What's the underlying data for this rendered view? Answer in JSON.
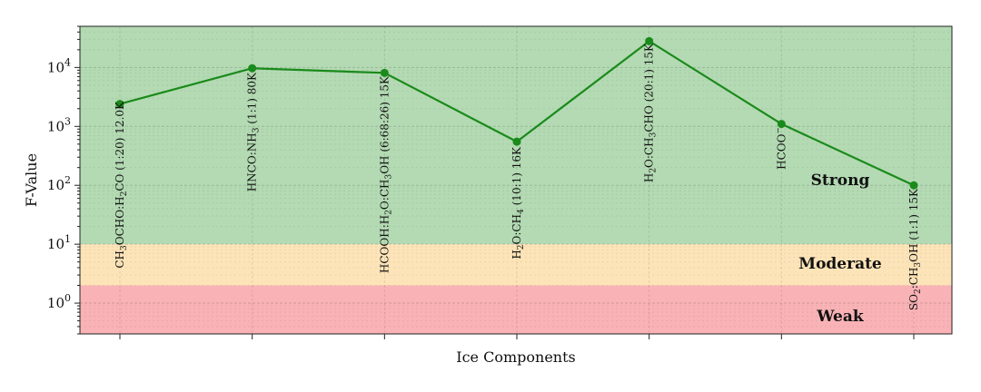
{
  "chart_data": {
    "type": "line",
    "title": "",
    "xlabel": "Ice Components",
    "ylabel": "F-Value",
    "yscale": "log",
    "ylim": [
      0.3,
      50000
    ],
    "grid": true,
    "categories": [
      "CH3OCHO:H2CO (1:20) 12.0K",
      "HNCO:NH3 (1:1) 80K",
      "HCOOH:H2O:CH3OH (6:68:26) 15K",
      "H2O:CH4 (10:1) 16K",
      "H2O:CH3CHO (20:1) 15K",
      "HCOO−",
      "SO2:CH3OH (1:1) 15K"
    ],
    "category_labels_rich": [
      [
        {
          "t": "CH"
        },
        {
          "t": "3",
          "s": "sub"
        },
        {
          "t": "OCHO:H"
        },
        {
          "t": "2",
          "s": "sub"
        },
        {
          "t": "CO (1:20) 12.0K"
        }
      ],
      [
        {
          "t": "HNCO:NH"
        },
        {
          "t": "3",
          "s": "sub"
        },
        {
          "t": " (1:1) 80K"
        }
      ],
      [
        {
          "t": "HCOOH:H"
        },
        {
          "t": "2",
          "s": "sub"
        },
        {
          "t": "O:CH"
        },
        {
          "t": "3",
          "s": "sub"
        },
        {
          "t": "OH (6:68:26) 15K"
        }
      ],
      [
        {
          "t": "H"
        },
        {
          "t": "2",
          "s": "sub"
        },
        {
          "t": "O:CH"
        },
        {
          "t": "4",
          "s": "sub"
        },
        {
          "t": " (10:1) 16K"
        }
      ],
      [
        {
          "t": "H"
        },
        {
          "t": "2",
          "s": "sub"
        },
        {
          "t": "O:CH"
        },
        {
          "t": "3",
          "s": "sub"
        },
        {
          "t": "CHO (20:1) 15K"
        }
      ],
      [
        {
          "t": "HCOO"
        },
        {
          "t": "−",
          "s": "sup"
        }
      ],
      [
        {
          "t": "SO"
        },
        {
          "t": "2",
          "s": "sub"
        },
        {
          "t": ":CH"
        },
        {
          "t": "3",
          "s": "sub"
        },
        {
          "t": "OH (1:1) 15K"
        }
      ]
    ],
    "series": [
      {
        "values": [
          2400,
          9700,
          8100,
          550,
          28000,
          1100,
          100
        ],
        "color": "#1a8a1a"
      }
    ],
    "y_ticks": [
      {
        "base": "10",
        "exp": "0",
        "value": 1
      },
      {
        "base": "10",
        "exp": "1",
        "value": 10
      },
      {
        "base": "10",
        "exp": "2",
        "value": 100
      },
      {
        "base": "10",
        "exp": "3",
        "value": 1000
      },
      {
        "base": "10",
        "exp": "4",
        "value": 10000
      }
    ],
    "bands": [
      {
        "label": "Strong",
        "from": 10,
        "to": 50000,
        "color": "#b3dab3"
      },
      {
        "label": "Moderate",
        "from": 2,
        "to": 10,
        "color": "#fde4b8"
      },
      {
        "label": "Weak",
        "from": 0.3,
        "to": 2,
        "color": "#f9b3b6"
      }
    ]
  }
}
